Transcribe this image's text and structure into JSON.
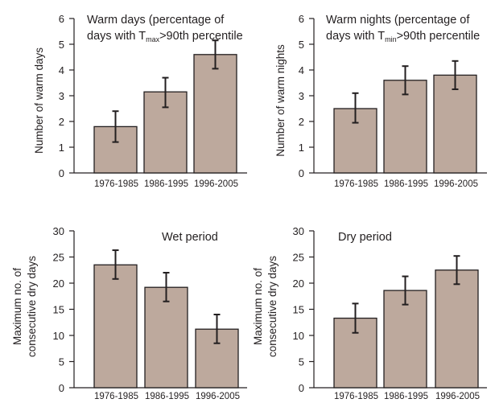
{
  "colors": {
    "bar_fill": "#bda99d",
    "bar_stroke": "#231f20",
    "axis": "#231f20"
  },
  "chart_data": [
    {
      "type": "bar",
      "title_lines": [
        "Warm days (percentage of",
        "days with T",
        "max",
        ">90th percentile"
      ],
      "ylabel": "Number of warm days",
      "categories": [
        "1976-1985",
        "1986-1995",
        "1996-2005"
      ],
      "values": [
        1.8,
        3.15,
        4.6
      ],
      "error_low": [
        1.2,
        2.55,
        4.05
      ],
      "error_high": [
        2.4,
        3.7,
        5.15
      ],
      "ylim": [
        0,
        6
      ],
      "yticks": [
        "0",
        "1",
        "2",
        "3",
        "4",
        "5",
        "6"
      ]
    },
    {
      "type": "bar",
      "title_lines": [
        "Warm nights (percentage of",
        "days with T",
        "min",
        ">90th percentile"
      ],
      "ylabel": "Number of warm nights",
      "categories": [
        "1976-1985",
        "1986-1995",
        "1996-2005"
      ],
      "values": [
        2.5,
        3.6,
        3.8
      ],
      "error_low": [
        1.95,
        3.05,
        3.25
      ],
      "error_high": [
        3.1,
        4.15,
        4.35
      ],
      "ylim": [
        0,
        6
      ],
      "yticks": [
        "0",
        "1",
        "2",
        "3",
        "4",
        "5",
        "6"
      ]
    },
    {
      "type": "bar",
      "title_lines": [
        "Wet period"
      ],
      "ylabel_lines": [
        "Maximum no. of",
        "consecutive dry days"
      ],
      "categories": [
        "1976-1985",
        "1986-1995",
        "1996-2005"
      ],
      "values": [
        23.5,
        19.2,
        11.2
      ],
      "error_low": [
        20.8,
        16.5,
        8.5
      ],
      "error_high": [
        26.3,
        22.0,
        14.0
      ],
      "ylim": [
        0,
        30
      ],
      "yticks": [
        "0",
        "5",
        "10",
        "15",
        "20",
        "25",
        "30"
      ]
    },
    {
      "type": "bar",
      "title_lines": [
        "Dry period"
      ],
      "ylabel_lines": [
        "Maximum no. of",
        "consecutive dry days"
      ],
      "categories": [
        "1976-1985",
        "1986-1995",
        "1996-2005"
      ],
      "values": [
        13.3,
        18.6,
        22.5
      ],
      "error_low": [
        10.5,
        15.9,
        19.8
      ],
      "error_high": [
        16.1,
        21.3,
        25.2
      ],
      "ylim": [
        0,
        30
      ],
      "yticks": [
        "0",
        "5",
        "10",
        "15",
        "20",
        "25",
        "30"
      ]
    }
  ]
}
